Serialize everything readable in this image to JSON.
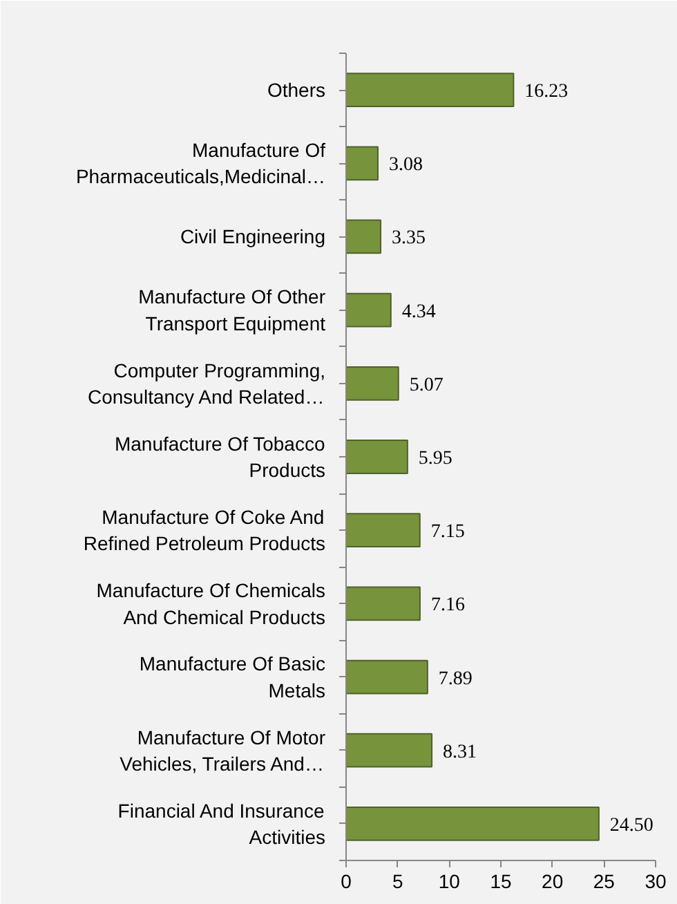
{
  "chart_data": {
    "type": "bar",
    "orientation": "horizontal",
    "categories": [
      "Others",
      "Manufacture Of\nPharmaceuticals,Medicinal…",
      "Civil Engineering",
      "Manufacture Of Other\nTransport Equipment",
      "Computer Programming,\nConsultancy And Related…",
      "Manufacture Of Tobacco\nProducts",
      "Manufacture Of Coke And\nRefined Petroleum Products",
      "Manufacture Of Chemicals\nAnd Chemical Products",
      "Manufacture Of Basic\nMetals",
      "Manufacture Of Motor\nVehicles, Trailers And…",
      "Financial And Insurance\nActivities"
    ],
    "values": [
      16.23,
      3.08,
      3.35,
      4.34,
      5.07,
      5.95,
      7.15,
      7.16,
      7.89,
      8.31,
      24.5
    ],
    "value_labels": [
      "16.23",
      "3.08",
      "3.35",
      "4.34",
      "5.07",
      "5.95",
      "7.15",
      "7.16",
      "7.89",
      "8.31",
      "24.50"
    ],
    "color": "#77933c",
    "xlim": [
      0,
      30
    ],
    "xticks": [
      0,
      5,
      10,
      15,
      20,
      25,
      30
    ],
    "grid": false
  }
}
